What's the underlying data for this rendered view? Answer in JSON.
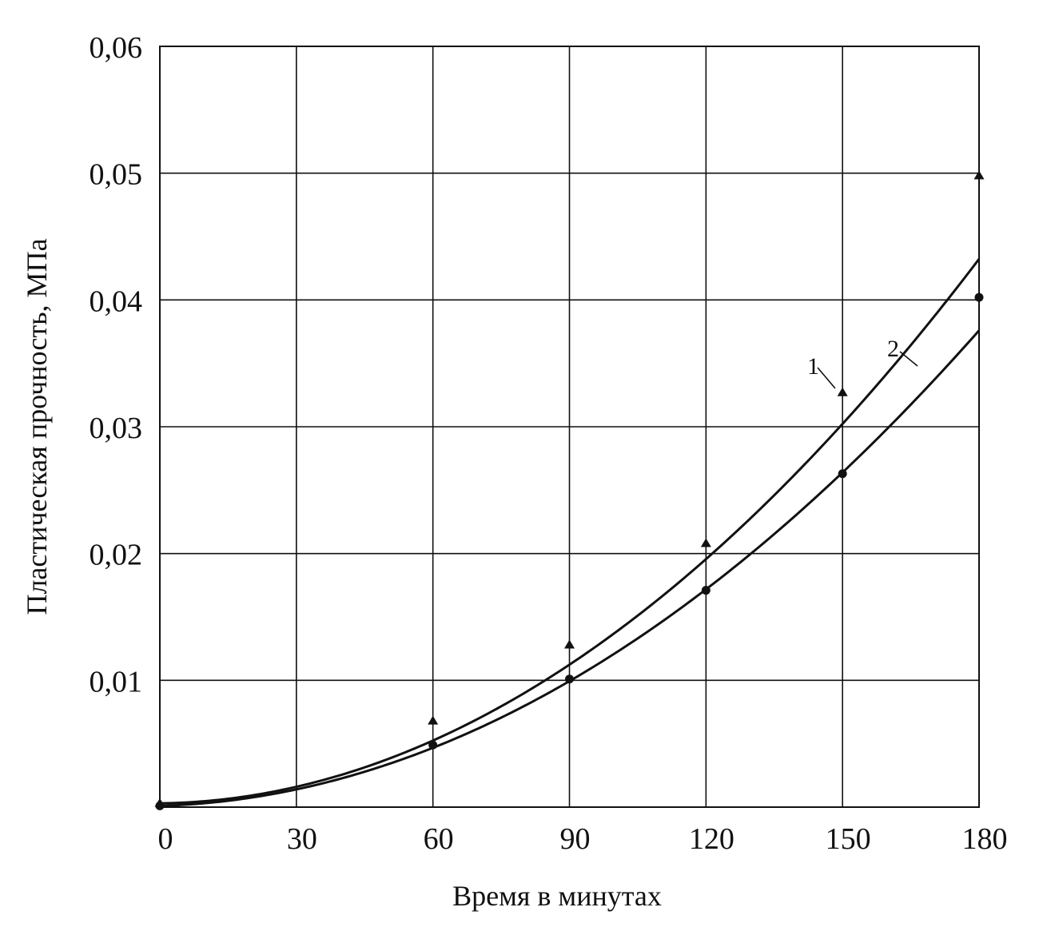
{
  "chart_data": {
    "type": "line",
    "title": "",
    "xlabel": "Время в минутах",
    "ylabel": "Пластическая прочность, МПа",
    "xlim": [
      0,
      180
    ],
    "ylim": [
      0,
      0.06
    ],
    "x_ticks": [
      0,
      30,
      60,
      90,
      120,
      150,
      180
    ],
    "x_tick_labels": [
      "0",
      "30",
      "60",
      "90",
      "120",
      "150",
      "180"
    ],
    "y_ticks": [
      0.01,
      0.02,
      0.03,
      0.04,
      0.05,
      0.06
    ],
    "y_tick_labels": [
      "0,01",
      "0,02",
      "0,03",
      "0,04",
      "0,05",
      "0,06"
    ],
    "grid": true,
    "legend": "none",
    "series": [
      {
        "label": "1",
        "marker": "triangle",
        "x": [
          0,
          60,
          90,
          120,
          150,
          180
        ],
        "y": [
          0.0003,
          0.0068,
          0.0128,
          0.0208,
          0.0327,
          0.0498
        ]
      },
      {
        "label": "2",
        "marker": "circle",
        "x": [
          0,
          60,
          90,
          120,
          150,
          180
        ],
        "y": [
          0.0001,
          0.0049,
          0.0101,
          0.0171,
          0.0263,
          0.0402
        ]
      }
    ],
    "curve_fit": [
      {
        "a": 0.0003,
        "b": 4.5e-06,
        "c": 1.3e-06
      },
      {
        "a": 0.0001,
        "b": 1.03e-05,
        "c": 1.1e-06
      }
    ]
  }
}
